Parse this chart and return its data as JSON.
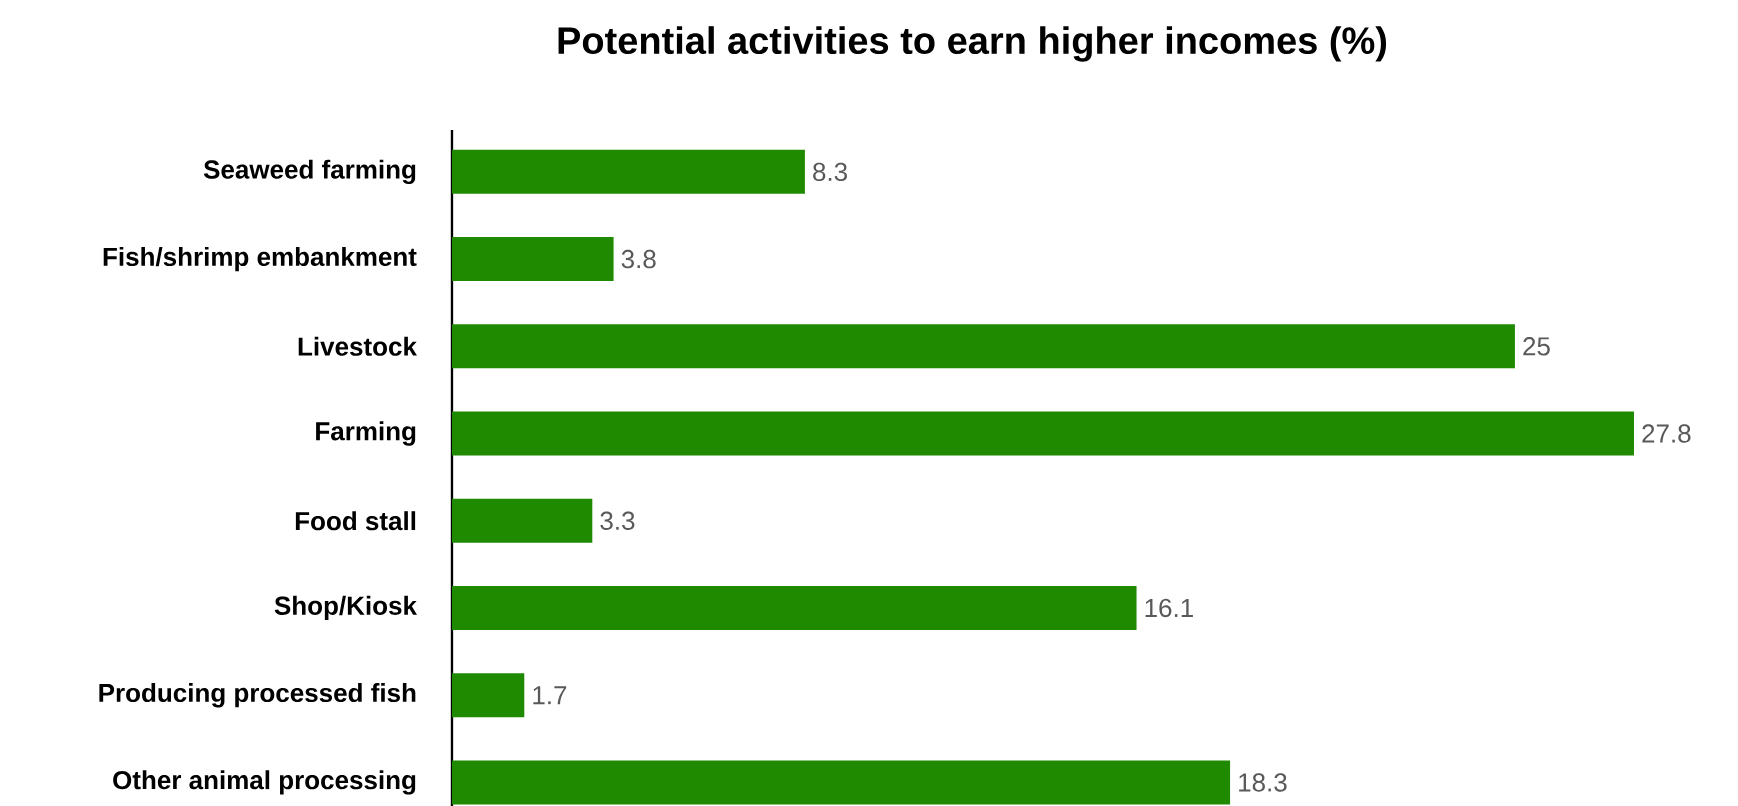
{
  "chart_data": {
    "type": "bar",
    "orientation": "horizontal",
    "title": "Potential activities to earn higher incomes (%)",
    "categories": [
      "Seaweed farming",
      "Fish/shrimp embankment",
      "Livestock",
      "Farming",
      "Food stall",
      "Shop/Kiosk",
      "Producing processed fish",
      "Other animal processing"
    ],
    "values": [
      8.3,
      3.8,
      25,
      27.8,
      3.3,
      16.1,
      1.7,
      18.3
    ],
    "color": "#1f8a00",
    "data_labels": true
  }
}
